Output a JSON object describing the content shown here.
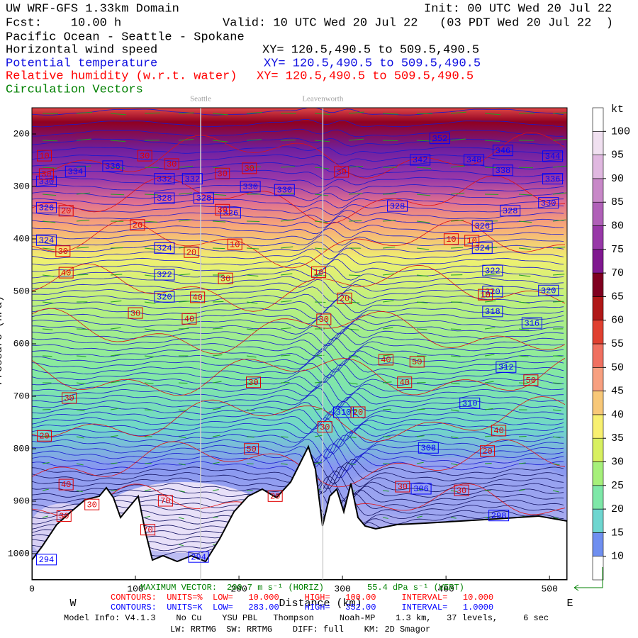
{
  "header": {
    "title": "UW WRF-GFS 1.33km Domain",
    "init": "Init: 00 UTC Wed 20 Jul 22",
    "fcst": "Fcst:    10.00 h",
    "valid": "Valid: 10 UTC Wed 20 Jul 22   (03 PDT Wed 20 Jul 22  )",
    "region": "Pacific Ocean - Seattle - Spokane",
    "fields": [
      {
        "name": "Horizontal wind speed",
        "xy": "XY= 120.5,490.5 to 509.5,490.5",
        "color": "#000000"
      },
      {
        "name": "Potential temperature",
        "xy": "XY= 120.5,490.5 to 509.5,490.5",
        "color": "#1010e0"
      },
      {
        "name": "Relative humidity (w.r.t. water)",
        "xy": "XY= 120.5,490.5 to 509.5,490.5",
        "color": "#ff0000"
      },
      {
        "name": "Circulation Vectors",
        "color": "#008000"
      }
    ]
  },
  "chart_data": {
    "type": "cross-section",
    "x_label": "Distance (km)",
    "y_label": "Pressure (hPa)",
    "xlim": [
      0,
      517
    ],
    "xticks": [
      0,
      100,
      200,
      300,
      400,
      500
    ],
    "ylim": [
      1050,
      150
    ],
    "yticks": [
      200,
      300,
      400,
      500,
      600,
      700,
      800,
      900,
      1000
    ],
    "west": "W",
    "east": "E",
    "locations": [
      {
        "name": "Seattle",
        "x": 163
      },
      {
        "name": "Leavenworth",
        "x": 281
      }
    ],
    "theta_labels": [
      {
        "x": 394,
        "p": 209,
        "value": 352
      },
      {
        "x": 455,
        "p": 232,
        "value": 346
      },
      {
        "x": 375,
        "p": 250,
        "value": 342
      },
      {
        "x": 427,
        "p": 250,
        "value": 348
      },
      {
        "x": 503,
        "p": 243,
        "value": 344
      },
      {
        "x": 78,
        "p": 262,
        "value": 336
      },
      {
        "x": 42,
        "p": 272,
        "value": 334
      },
      {
        "x": 128,
        "p": 286,
        "value": 332
      },
      {
        "x": 155,
        "p": 286,
        "value": 332
      },
      {
        "x": 455,
        "p": 270,
        "value": 338
      },
      {
        "x": 503,
        "p": 286,
        "value": 336
      },
      {
        "x": 14,
        "p": 291,
        "value": 330
      },
      {
        "x": 211,
        "p": 301,
        "value": 330
      },
      {
        "x": 244,
        "p": 307,
        "value": 330
      },
      {
        "x": 128,
        "p": 323,
        "value": 328
      },
      {
        "x": 166,
        "p": 323,
        "value": 328
      },
      {
        "x": 353,
        "p": 338,
        "value": 328
      },
      {
        "x": 462,
        "p": 347,
        "value": 328
      },
      {
        "x": 499,
        "p": 332,
        "value": 330
      },
      {
        "x": 14,
        "p": 341,
        "value": 326
      },
      {
        "x": 192,
        "p": 351,
        "value": 326
      },
      {
        "x": 435,
        "p": 376,
        "value": 326
      },
      {
        "x": 14,
        "p": 403,
        "value": 324
      },
      {
        "x": 128,
        "p": 418,
        "value": 324
      },
      {
        "x": 435,
        "p": 418,
        "value": 324
      },
      {
        "x": 128,
        "p": 469,
        "value": 322
      },
      {
        "x": 445,
        "p": 461,
        "value": 322
      },
      {
        "x": 128,
        "p": 511,
        "value": 320
      },
      {
        "x": 445,
        "p": 501,
        "value": 320
      },
      {
        "x": 499,
        "p": 499,
        "value": 320
      },
      {
        "x": 445,
        "p": 539,
        "value": 318
      },
      {
        "x": 483,
        "p": 561,
        "value": 316
      },
      {
        "x": 458,
        "p": 645,
        "value": 312
      },
      {
        "x": 423,
        "p": 714,
        "value": 310
      },
      {
        "x": 301,
        "p": 731,
        "value": 310
      },
      {
        "x": 383,
        "p": 799,
        "value": 308
      },
      {
        "x": 376,
        "p": 877,
        "value": 306
      },
      {
        "x": 451,
        "p": 928,
        "value": 298
      },
      {
        "x": 161,
        "p": 1007,
        "value": 294
      },
      {
        "x": 14,
        "p": 1012,
        "value": 294
      }
    ],
    "rh_labels": [
      {
        "x": 12,
        "p": 242,
        "value": 10
      },
      {
        "x": 109,
        "p": 242,
        "value": 30
      },
      {
        "x": 135,
        "p": 258,
        "value": 30
      },
      {
        "x": 14,
        "p": 277,
        "value": 30
      },
      {
        "x": 184,
        "p": 276,
        "value": 30
      },
      {
        "x": 210,
        "p": 266,
        "value": 30
      },
      {
        "x": 299,
        "p": 273,
        "value": 30
      },
      {
        "x": 33,
        "p": 347,
        "value": 20
      },
      {
        "x": 184,
        "p": 345,
        "value": 30
      },
      {
        "x": 102,
        "p": 374,
        "value": 20
      },
      {
        "x": 196,
        "p": 411,
        "value": 10
      },
      {
        "x": 154,
        "p": 426,
        "value": 20
      },
      {
        "x": 30,
        "p": 424,
        "value": 30
      },
      {
        "x": 405,
        "p": 401,
        "value": 10
      },
      {
        "x": 425,
        "p": 404,
        "value": 10
      },
      {
        "x": 33,
        "p": 465,
        "value": 40
      },
      {
        "x": 187,
        "p": 476,
        "value": 30
      },
      {
        "x": 277,
        "p": 464,
        "value": 10
      },
      {
        "x": 438,
        "p": 507,
        "value": 10
      },
      {
        "x": 160,
        "p": 512,
        "value": 40
      },
      {
        "x": 302,
        "p": 514,
        "value": 20
      },
      {
        "x": 100,
        "p": 542,
        "value": 30
      },
      {
        "x": 152,
        "p": 553,
        "value": 40
      },
      {
        "x": 282,
        "p": 554,
        "value": 30
      },
      {
        "x": 342,
        "p": 631,
        "value": 40
      },
      {
        "x": 372,
        "p": 635,
        "value": 50
      },
      {
        "x": 360,
        "p": 674,
        "value": 40
      },
      {
        "x": 214,
        "p": 674,
        "value": 30
      },
      {
        "x": 482,
        "p": 670,
        "value": 50
      },
      {
        "x": 36,
        "p": 704,
        "value": 30
      },
      {
        "x": 315,
        "p": 731,
        "value": 20
      },
      {
        "x": 283,
        "p": 759,
        "value": 30
      },
      {
        "x": 451,
        "p": 766,
        "value": 40
      },
      {
        "x": 12,
        "p": 776,
        "value": 20
      },
      {
        "x": 212,
        "p": 801,
        "value": 50
      },
      {
        "x": 440,
        "p": 805,
        "value": 20
      },
      {
        "x": 33,
        "p": 869,
        "value": 40
      },
      {
        "x": 358,
        "p": 873,
        "value": 30
      },
      {
        "x": 415,
        "p": 880,
        "value": 30
      },
      {
        "x": 58,
        "p": 907,
        "value": 30
      },
      {
        "x": 129,
        "p": 900,
        "value": 70
      },
      {
        "x": 235,
        "p": 891,
        "value": 20
      },
      {
        "x": 31,
        "p": 929,
        "value": 30
      },
      {
        "x": 112,
        "p": 955,
        "value": 70
      }
    ],
    "colorbar": {
      "unit": "kt",
      "lim": [
        5,
        105
      ],
      "levels": [
        5,
        10,
        15,
        20,
        25,
        30,
        35,
        40,
        45,
        50,
        55,
        60,
        65,
        70,
        75,
        80,
        85,
        90,
        95,
        100,
        105
      ],
      "colors": [
        "#ffffff",
        "#6f8ff0",
        "#6ed6d0",
        "#7ee8a8",
        "#a6f07a",
        "#d8f060",
        "#f8f070",
        "#f8c878",
        "#f8a080",
        "#f07060",
        "#e04030",
        "#b01818",
        "#800020",
        "#801890",
        "#9838a8",
        "#b060b8",
        "#c888c8",
        "#e0b8e0",
        "#f0e0f0",
        "#ffffff"
      ],
      "ticks": [
        10,
        15,
        20,
        25,
        30,
        35,
        40,
        45,
        50,
        55,
        60,
        65,
        70,
        75,
        80,
        85,
        90,
        95,
        100
      ]
    }
  },
  "footer": {
    "vector_label": "MAXIMUM VECTOR:",
    "vector_horiz": "200.7 m s⁻¹ (HORIZ)",
    "vector_vert": "55.4 dPa s⁻¹ (VERT)",
    "rh_contours": "CONTOURS:  UNITS=%  LOW=   10.000     HIGH=   100.00     INTERVAL=   10.000",
    "theta_contours": "CONTOURS:  UNITS=K  LOW=   283.00     HIGH=   352.00     INTERVAL=   1.0000",
    "model_info": "Model Info: V4.1.3    No Cu    YSU PBL   Thompson     Noah-MP    1.3 km,   37 levels,     6 sec",
    "physics": "LW: RRTMG  SW: RRTMG    DIFF: full    KM: 2D Smagor"
  }
}
